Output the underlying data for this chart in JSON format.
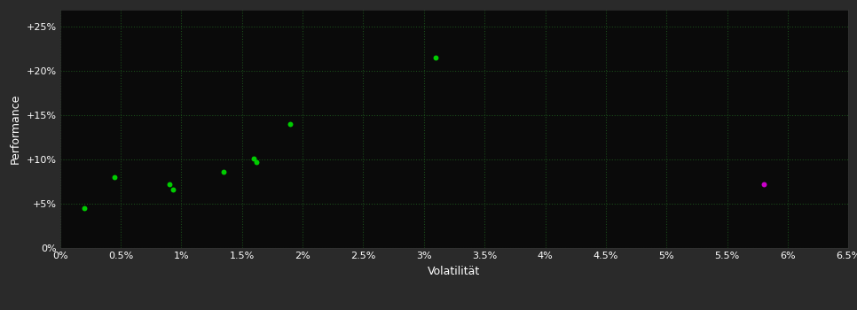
{
  "background_color": "#2a2a2a",
  "plot_bg_color": "#0a0a0a",
  "grid_color": "#1a4a1a",
  "xlabel": "Volatilität",
  "ylabel": "Performance",
  "text_color": "#ffffff",
  "tick_fontsize": 8,
  "label_fontsize": 9,
  "xlim": [
    0.0,
    0.065
  ],
  "ylim": [
    0.0,
    0.27
  ],
  "xticks": [
    0.0,
    0.005,
    0.01,
    0.015,
    0.02,
    0.025,
    0.03,
    0.035,
    0.04,
    0.045,
    0.05,
    0.055,
    0.06,
    0.065
  ],
  "yticks": [
    0.0,
    0.05,
    0.1,
    0.15,
    0.2,
    0.25
  ],
  "green_x": [
    0.002,
    0.0045,
    0.009,
    0.0093,
    0.0135,
    0.016,
    0.0162,
    0.019,
    0.031
  ],
  "green_y": [
    0.045,
    0.08,
    0.072,
    0.066,
    0.086,
    0.101,
    0.097,
    0.14,
    0.215
  ],
  "green_color": "#00cc00",
  "purple_x": [
    0.058
  ],
  "purple_y": [
    0.072
  ],
  "purple_color": "#cc00cc",
  "marker_size": 18
}
